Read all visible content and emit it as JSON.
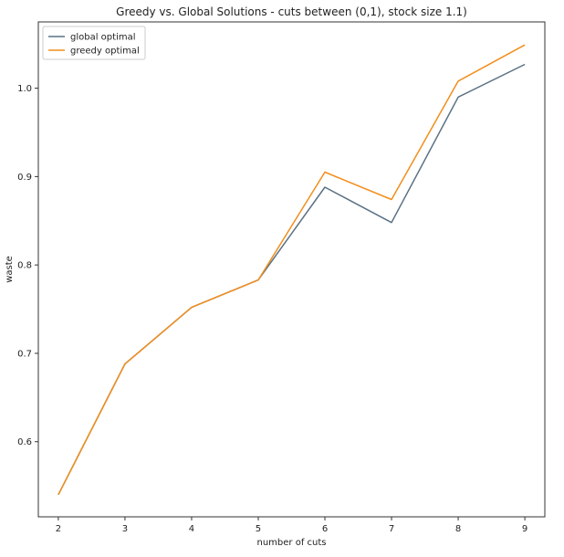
{
  "chart_data": {
    "type": "line",
    "title": "Greedy vs. Global Solutions - cuts between (0,1), stock size 1.1)",
    "xlabel": "number of cuts",
    "ylabel": "waste",
    "x": [
      2,
      3,
      4,
      5,
      6,
      7,
      8,
      9
    ],
    "xlim": [
      1.7,
      9.3
    ],
    "ylim": [
      0.515,
      1.075
    ],
    "xticks": [
      "2",
      "3",
      "4",
      "5",
      "6",
      "7",
      "8",
      "9"
    ],
    "yticks": [
      "0.6",
      "0.7",
      "0.8",
      "0.9",
      "1.0"
    ],
    "ytick_values": [
      0.6,
      0.7,
      0.8,
      0.9,
      1.0
    ],
    "grid": false,
    "legend_position": "upper-left",
    "series": [
      {
        "name": "global optimal",
        "color": "#5a7184",
        "values": [
          0.54,
          0.688,
          0.752,
          0.783,
          0.888,
          0.848,
          0.99,
          1.027
        ]
      },
      {
        "name": "greedy optimal",
        "color": "#f28e1c",
        "values": [
          0.54,
          0.688,
          0.752,
          0.783,
          0.905,
          0.874,
          1.008,
          1.049
        ]
      }
    ]
  }
}
